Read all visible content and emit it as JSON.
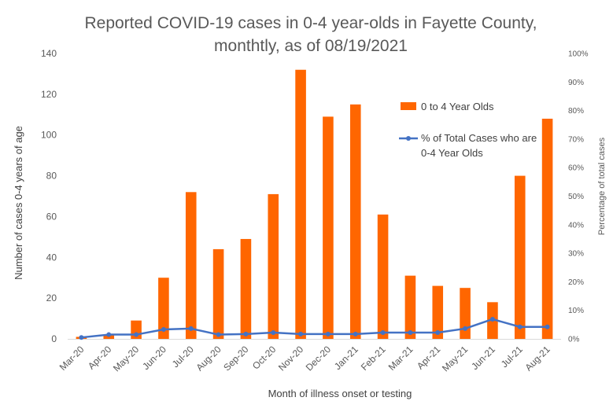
{
  "chart_data": {
    "type": "bar",
    "title_line1": "Reported COVID-19 cases in 0-4 year-olds in Fayette County,",
    "title_line2": "monthtly, as of 08/19/2021",
    "xlabel": "Month of illness onset or testing",
    "ylabel": "Number of cases 0-4 years of age",
    "y2label": "Percentage of total cases",
    "categories": [
      "Mar-20",
      "Apr-20",
      "May-20",
      "Jun-20",
      "Jul-20",
      "Aug-20",
      "Sep-20",
      "Oct-20",
      "Nov-20",
      "Dec-20",
      "Jan-21",
      "Feb-21",
      "Mar-21",
      "Apr-21",
      "May-21",
      "Jun-21",
      "Jul-21",
      "Aug-21"
    ],
    "ylim": [
      0,
      140
    ],
    "yticks": [
      "0",
      "20",
      "40",
      "60",
      "80",
      "100",
      "120",
      "140"
    ],
    "y2lim": [
      0,
      100
    ],
    "y2ticks": [
      "0%",
      "10%",
      "20%",
      "30%",
      "40%",
      "50%",
      "60%",
      "70%",
      "80%",
      "90%",
      "100%"
    ],
    "series": [
      {
        "name": "0 to 4 Year Olds",
        "type": "bar",
        "color": "#FF6600",
        "values": [
          1,
          2,
          9,
          30,
          72,
          44,
          49,
          71,
          132,
          109,
          115,
          61,
          31,
          26,
          25,
          18,
          80,
          108
        ]
      },
      {
        "name_line1": "% of Total Cases who are",
        "name_line2": "0-4 Year Olds",
        "type": "line",
        "axis": "secondary",
        "color": "#4472C4",
        "values": [
          0.5,
          1.5,
          1.5,
          3.3,
          3.6,
          1.5,
          1.7,
          2.2,
          1.7,
          1.7,
          1.7,
          2.2,
          2.2,
          2.2,
          3.6,
          6.9,
          4.2,
          4.2
        ]
      }
    ],
    "grid": false,
    "legend_position": "upper-right"
  }
}
